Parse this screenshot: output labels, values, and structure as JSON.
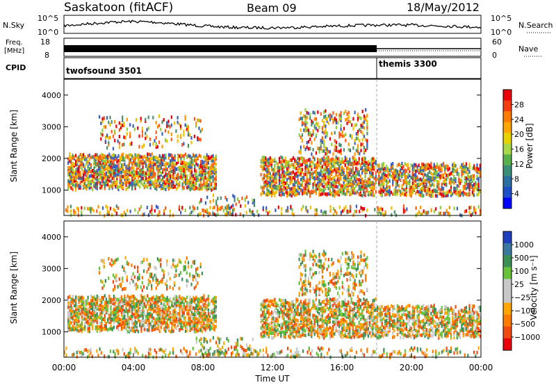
{
  "header": {
    "station": "Saskatoon (fitACF)",
    "beam": "Beam 09",
    "date": "18/May/2012"
  },
  "nsky_panel": {
    "left_label": "N.Sky",
    "left_ticks": [
      "10^5",
      "10^0"
    ],
    "right_ticks": [
      "10^5",
      "10^0"
    ],
    "right_label": "N.Search"
  },
  "freq_panel": {
    "left_label_1": "Freq.",
    "left_label_2": "[MHz]",
    "left_ticks": [
      "18",
      "8"
    ],
    "right_ticks": [
      "60",
      "0"
    ],
    "right_label": "Nave"
  },
  "cpid_panel": {
    "label": "CPID",
    "modes": [
      {
        "name": "twofsound 3501",
        "start_hour": 0
      },
      {
        "name": "themis 3300",
        "start_hour": 18
      }
    ]
  },
  "chart_data": [
    {
      "type": "heatmap",
      "panel": "power",
      "xlabel": "Time UT",
      "ylabel": "Slant Range [km]",
      "xlim": [
        0,
        24
      ],
      "ylim": [
        200,
        4500
      ],
      "x_ticks": [
        "00:00",
        "04:00",
        "08:00",
        "12:00",
        "16:00",
        "20:00",
        "00:00"
      ],
      "y_ticks": [
        1000,
        2000,
        3000,
        4000
      ],
      "colorbar_label": "Power [dB]",
      "colorbar_ticks": [
        "28",
        "24",
        "20",
        "16",
        "12",
        "8",
        "4"
      ],
      "colorbar_colors": [
        "#e8000b",
        "#f53b12",
        "#ff7a00",
        "#ffa500",
        "#e6d200",
        "#a8d84a",
        "#57b04a",
        "#3b8f78",
        "#2d6fa0",
        "#1f4fc8",
        "#0000ff"
      ],
      "scatter_colors": [
        "#3a5fbf",
        "#4a8f6a",
        "#8fce3c",
        "#f0c000",
        "#ff9500",
        "#ff5a1a",
        "#e8000b"
      ]
    },
    {
      "type": "heatmap",
      "panel": "velocity",
      "xlabel": "Time UT",
      "ylabel": "Slant Range [km]",
      "xlim": [
        0,
        24
      ],
      "ylim": [
        200,
        4500
      ],
      "x_ticks": [
        "00:00",
        "04:00",
        "08:00",
        "12:00",
        "16:00",
        "20:00",
        "00:00"
      ],
      "y_ticks": [
        1000,
        2000,
        3000,
        4000
      ],
      "colorbar_label": "Velocity [m s⁻¹]",
      "colorbar_ticks": [
        "1000",
        "500",
        "100",
        "25",
        "−25",
        "−100",
        "−500",
        "−1000"
      ],
      "colorbar_colors": [
        "#1f3fbf",
        "#3a78a0",
        "#3c8f55",
        "#66c33a",
        "#c8c8c8",
        "#c8c8c8",
        "#ffa500",
        "#ff7a00",
        "#f04a10",
        "#e8000b"
      ],
      "scatter_colors": [
        "#3c8f55",
        "#66c33a",
        "#c8c8c8",
        "#ffa500",
        "#ff7a00",
        "#f04a10"
      ]
    }
  ]
}
